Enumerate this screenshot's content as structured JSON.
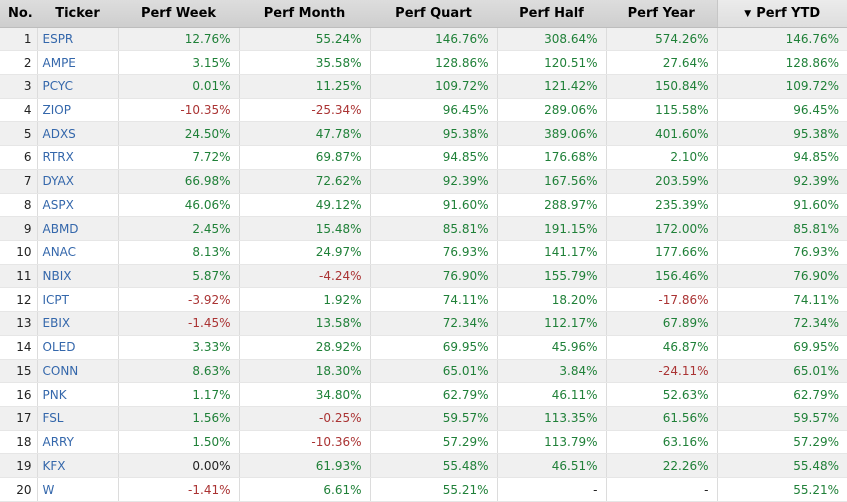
{
  "table": {
    "columns": [
      {
        "label": "No."
      },
      {
        "label": "Ticker"
      },
      {
        "label": "Perf Week"
      },
      {
        "label": "Perf Month"
      },
      {
        "label": "Perf Quart"
      },
      {
        "label": "Perf Half"
      },
      {
        "label": "Perf Year"
      },
      {
        "label": "Perf YTD",
        "sorted": true
      }
    ],
    "sort": {
      "column": "Perf YTD",
      "direction": "descending",
      "icon": "▼"
    },
    "rows": [
      {
        "no": "1",
        "ticker": "ESPR",
        "cells": [
          [
            "12.76%",
            "pos"
          ],
          [
            "55.24%",
            "pos"
          ],
          [
            "146.76%",
            "pos"
          ],
          [
            "308.64%",
            "pos"
          ],
          [
            "574.26%",
            "pos"
          ],
          [
            "146.76%",
            "pos"
          ]
        ]
      },
      {
        "no": "2",
        "ticker": "AMPE",
        "cells": [
          [
            "3.15%",
            "pos"
          ],
          [
            "35.58%",
            "pos"
          ],
          [
            "128.86%",
            "pos"
          ],
          [
            "120.51%",
            "pos"
          ],
          [
            "27.64%",
            "pos"
          ],
          [
            "128.86%",
            "pos"
          ]
        ]
      },
      {
        "no": "3",
        "ticker": "PCYC",
        "cells": [
          [
            "0.01%",
            "pos"
          ],
          [
            "11.25%",
            "pos"
          ],
          [
            "109.72%",
            "pos"
          ],
          [
            "121.42%",
            "pos"
          ],
          [
            "150.84%",
            "pos"
          ],
          [
            "109.72%",
            "pos"
          ]
        ]
      },
      {
        "no": "4",
        "ticker": "ZIOP",
        "cells": [
          [
            "-10.35%",
            "neg"
          ],
          [
            "-25.34%",
            "neg"
          ],
          [
            "96.45%",
            "pos"
          ],
          [
            "289.06%",
            "pos"
          ],
          [
            "115.58%",
            "pos"
          ],
          [
            "96.45%",
            "pos"
          ]
        ]
      },
      {
        "no": "5",
        "ticker": "ADXS",
        "cells": [
          [
            "24.50%",
            "pos"
          ],
          [
            "47.78%",
            "pos"
          ],
          [
            "95.38%",
            "pos"
          ],
          [
            "389.06%",
            "pos"
          ],
          [
            "401.60%",
            "pos"
          ],
          [
            "95.38%",
            "pos"
          ]
        ]
      },
      {
        "no": "6",
        "ticker": "RTRX",
        "cells": [
          [
            "7.72%",
            "pos"
          ],
          [
            "69.87%",
            "pos"
          ],
          [
            "94.85%",
            "pos"
          ],
          [
            "176.68%",
            "pos"
          ],
          [
            "2.10%",
            "pos"
          ],
          [
            "94.85%",
            "pos"
          ]
        ]
      },
      {
        "no": "7",
        "ticker": "DYAX",
        "cells": [
          [
            "66.98%",
            "pos"
          ],
          [
            "72.62%",
            "pos"
          ],
          [
            "92.39%",
            "pos"
          ],
          [
            "167.56%",
            "pos"
          ],
          [
            "203.59%",
            "pos"
          ],
          [
            "92.39%",
            "pos"
          ]
        ]
      },
      {
        "no": "8",
        "ticker": "ASPX",
        "cells": [
          [
            "46.06%",
            "pos"
          ],
          [
            "49.12%",
            "pos"
          ],
          [
            "91.60%",
            "pos"
          ],
          [
            "288.97%",
            "pos"
          ],
          [
            "235.39%",
            "pos"
          ],
          [
            "91.60%",
            "pos"
          ]
        ]
      },
      {
        "no": "9",
        "ticker": "ABMD",
        "cells": [
          [
            "2.45%",
            "pos"
          ],
          [
            "15.48%",
            "pos"
          ],
          [
            "85.81%",
            "pos"
          ],
          [
            "191.15%",
            "pos"
          ],
          [
            "172.00%",
            "pos"
          ],
          [
            "85.81%",
            "pos"
          ]
        ]
      },
      {
        "no": "10",
        "ticker": "ANAC",
        "cells": [
          [
            "8.13%",
            "pos"
          ],
          [
            "24.97%",
            "pos"
          ],
          [
            "76.93%",
            "pos"
          ],
          [
            "141.17%",
            "pos"
          ],
          [
            "177.66%",
            "pos"
          ],
          [
            "76.93%",
            "pos"
          ]
        ]
      },
      {
        "no": "11",
        "ticker": "NBIX",
        "cells": [
          [
            "5.87%",
            "pos"
          ],
          [
            "-4.24%",
            "neg"
          ],
          [
            "76.90%",
            "pos"
          ],
          [
            "155.79%",
            "pos"
          ],
          [
            "156.46%",
            "pos"
          ],
          [
            "76.90%",
            "pos"
          ]
        ]
      },
      {
        "no": "12",
        "ticker": "ICPT",
        "cells": [
          [
            "-3.92%",
            "neg"
          ],
          [
            "1.92%",
            "pos"
          ],
          [
            "74.11%",
            "pos"
          ],
          [
            "18.20%",
            "pos"
          ],
          [
            "-17.86%",
            "neg"
          ],
          [
            "74.11%",
            "pos"
          ]
        ]
      },
      {
        "no": "13",
        "ticker": "EBIX",
        "cells": [
          [
            "-1.45%",
            "neg"
          ],
          [
            "13.58%",
            "pos"
          ],
          [
            "72.34%",
            "pos"
          ],
          [
            "112.17%",
            "pos"
          ],
          [
            "67.89%",
            "pos"
          ],
          [
            "72.34%",
            "pos"
          ]
        ]
      },
      {
        "no": "14",
        "ticker": "OLED",
        "cells": [
          [
            "3.33%",
            "pos"
          ],
          [
            "28.92%",
            "pos"
          ],
          [
            "69.95%",
            "pos"
          ],
          [
            "45.96%",
            "pos"
          ],
          [
            "46.87%",
            "pos"
          ],
          [
            "69.95%",
            "pos"
          ]
        ]
      },
      {
        "no": "15",
        "ticker": "CONN",
        "cells": [
          [
            "8.63%",
            "pos"
          ],
          [
            "18.30%",
            "pos"
          ],
          [
            "65.01%",
            "pos"
          ],
          [
            "3.84%",
            "pos"
          ],
          [
            "-24.11%",
            "neg"
          ],
          [
            "65.01%",
            "pos"
          ]
        ]
      },
      {
        "no": "16",
        "ticker": "PNK",
        "cells": [
          [
            "1.17%",
            "pos"
          ],
          [
            "34.80%",
            "pos"
          ],
          [
            "62.79%",
            "pos"
          ],
          [
            "46.11%",
            "pos"
          ],
          [
            "52.63%",
            "pos"
          ],
          [
            "62.79%",
            "pos"
          ]
        ]
      },
      {
        "no": "17",
        "ticker": "FSL",
        "cells": [
          [
            "1.56%",
            "pos"
          ],
          [
            "-0.25%",
            "neg"
          ],
          [
            "59.57%",
            "pos"
          ],
          [
            "113.35%",
            "pos"
          ],
          [
            "61.56%",
            "pos"
          ],
          [
            "59.57%",
            "pos"
          ]
        ]
      },
      {
        "no": "18",
        "ticker": "ARRY",
        "cells": [
          [
            "1.50%",
            "pos"
          ],
          [
            "-10.36%",
            "neg"
          ],
          [
            "57.29%",
            "pos"
          ],
          [
            "113.79%",
            "pos"
          ],
          [
            "63.16%",
            "pos"
          ],
          [
            "57.29%",
            "pos"
          ]
        ]
      },
      {
        "no": "19",
        "ticker": "KFX",
        "cells": [
          [
            "0.00%",
            "neu"
          ],
          [
            "61.93%",
            "pos"
          ],
          [
            "55.48%",
            "pos"
          ],
          [
            "46.51%",
            "pos"
          ],
          [
            "22.26%",
            "pos"
          ],
          [
            "55.48%",
            "pos"
          ]
        ]
      },
      {
        "no": "20",
        "ticker": "W",
        "cells": [
          [
            "-1.41%",
            "neg"
          ],
          [
            "6.61%",
            "pos"
          ],
          [
            "55.21%",
            "pos"
          ],
          [
            "-",
            "neu"
          ],
          [
            "-",
            "neu"
          ],
          [
            "55.21%",
            "pos"
          ]
        ]
      }
    ]
  },
  "colors": {
    "positive": "#1f8038",
    "negative": "#aa3333",
    "neutral": "#222222",
    "ticker_link": "#3467ab",
    "header_bg": "#d5d5d5",
    "sorted_header_bg": "#e4e4e4",
    "row_stripe": "#f0f0f0"
  }
}
